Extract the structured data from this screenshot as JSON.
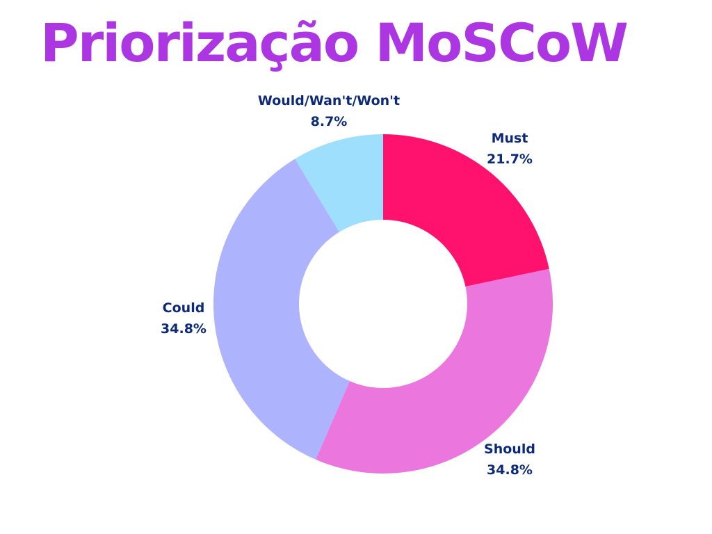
{
  "chart_data": {
    "type": "pie",
    "style": "donut",
    "title": "Priorização MoSCoW",
    "categories": [
      "Must",
      "Should",
      "Could",
      "Would/Wan't/Won't"
    ],
    "values": [
      21.7,
      34.8,
      34.8,
      8.7
    ],
    "value_labels": [
      "21.7%",
      "34.8%",
      "34.8%",
      "8.7%"
    ],
    "colors": [
      "#fe126e",
      "#ea76de",
      "#aeb3fe",
      "#9ddffc"
    ],
    "start_angle": "12 o'clock",
    "direction": "clockwise",
    "legend": "none",
    "label_placement": "outside"
  },
  "colors": {
    "title": "#ad36e3",
    "labels": "#0d2a78",
    "background": "#ffffff"
  }
}
